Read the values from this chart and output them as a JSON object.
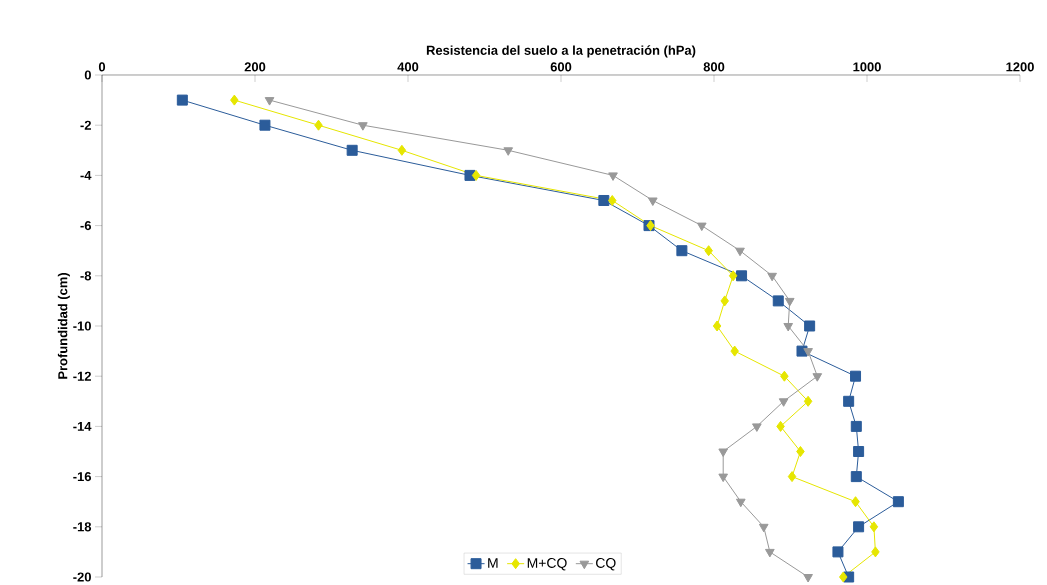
{
  "chart_data": {
    "type": "line",
    "xlabel": "Resistencia del suelo a la penetración (hPa)",
    "ylabel": "Profundidad (cm)",
    "xlim": [
      0,
      1200
    ],
    "xticks": [
      0,
      200,
      400,
      600,
      800,
      1000,
      1200
    ],
    "ylim": [
      -20,
      0
    ],
    "yticks": [
      -20,
      -18,
      -16,
      -14,
      -12,
      -10,
      -8,
      -6,
      -4,
      -2,
      0
    ],
    "legend": "bottom",
    "grid": false,
    "line_style": "solid",
    "series": [
      {
        "name": "M",
        "color": "#2b5c9a",
        "marker": "square",
        "x": [
          105,
          213,
          327,
          481,
          656,
          715,
          758,
          836,
          884,
          925,
          915,
          985,
          976,
          986,
          989,
          986,
          1041,
          989,
          962,
          976
        ],
        "values": [
          -1,
          -2,
          -3,
          -4,
          -5,
          -6,
          -7,
          -8,
          -9,
          -10,
          -11,
          -12,
          -13,
          -14,
          -15,
          -16,
          -17,
          -18,
          -19,
          -20
        ]
      },
      {
        "name": "M+CQ",
        "color": "#e6e600",
        "marker": "diamond",
        "x": [
          173,
          283,
          392,
          489,
          667,
          717,
          793,
          825,
          814,
          804,
          827,
          892,
          923,
          887,
          913,
          902,
          985,
          1009,
          1011,
          969
        ],
        "values": [
          -1,
          -2,
          -3,
          -4,
          -5,
          -6,
          -7,
          -8,
          -9,
          -10,
          -11,
          -12,
          -13,
          -14,
          -15,
          -16,
          -17,
          -18,
          -19,
          -20
        ]
      },
      {
        "name": "CQ",
        "color": "#999999",
        "marker": "triangle",
        "x": [
          219,
          341,
          531,
          668,
          720,
          784,
          834,
          876,
          899,
          897,
          923,
          935,
          891,
          856,
          812,
          812,
          835,
          865,
          873,
          923
        ],
        "values": [
          -1,
          -2,
          -3,
          -4,
          -5,
          -6,
          -7,
          -8,
          -9,
          -10,
          -11,
          -12,
          -13,
          -14,
          -15,
          -16,
          -17,
          -18,
          -19,
          -20
        ]
      }
    ]
  }
}
